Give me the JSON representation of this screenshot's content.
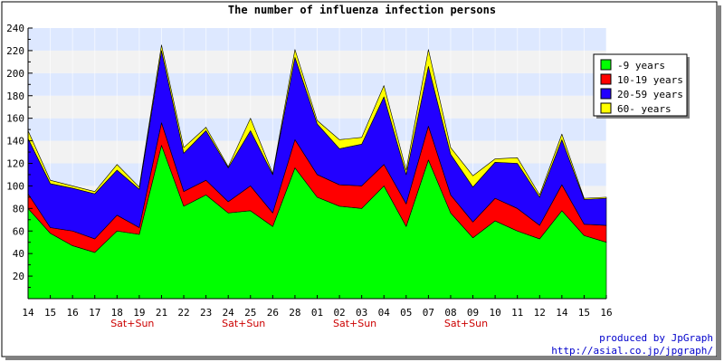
{
  "chart_data": {
    "type": "area",
    "stacked": true,
    "title": "The number of influenza infection persons",
    "categories": [
      "14",
      "15",
      "16",
      "17",
      "18",
      "19",
      "21",
      "22",
      "23",
      "24",
      "25",
      "26",
      "28",
      "01",
      "02",
      "03",
      "04",
      "05",
      "07",
      "08",
      "09",
      "10",
      "11",
      "12",
      "14",
      "15",
      "16"
    ],
    "x_sublabels": [
      {
        "index": 4,
        "text": "Sat+Sun"
      },
      {
        "index": 9,
        "text": "Sat+Sun"
      },
      {
        "index": 14,
        "text": "Sat+Sun"
      },
      {
        "index": 19,
        "text": "Sat+Sun"
      }
    ],
    "ylim": [
      0,
      240
    ],
    "yticks": [
      20,
      40,
      60,
      80,
      100,
      120,
      140,
      160,
      180,
      200,
      220,
      240
    ],
    "grid": true,
    "legend_position": "top-right",
    "series": [
      {
        "name": "-9 years",
        "color": "#00ff00",
        "values": [
          80,
          58,
          47,
          41,
          60,
          57,
          136,
          82,
          92,
          76,
          78,
          64,
          116,
          90,
          82,
          80,
          100,
          64,
          123,
          76,
          54,
          69,
          60,
          53,
          78,
          56,
          50
        ]
      },
      {
        "name": "10-19 years",
        "color": "#ff0000",
        "values": [
          13,
          5,
          13,
          12,
          14,
          6,
          20,
          13,
          13,
          10,
          22,
          12,
          25,
          20,
          19,
          20,
          19,
          20,
          30,
          16,
          14,
          20,
          20,
          12,
          23,
          10,
          15
        ]
      },
      {
        "name": "20-59 years",
        "color": "#2200ff",
        "values": [
          49,
          39,
          38,
          40,
          40,
          34,
          64,
          34,
          44,
          30,
          49,
          34,
          73,
          45,
          32,
          37,
          60,
          26,
          53,
          36,
          31,
          32,
          40,
          25,
          40,
          22,
          24
        ]
      },
      {
        "name": "60- years",
        "color": "#ffff00",
        "values": [
          7,
          3,
          2,
          2,
          5,
          2,
          5,
          5,
          3,
          1,
          11,
          1,
          7,
          3,
          8,
          6,
          10,
          4,
          15,
          6,
          10,
          3,
          5,
          2,
          5,
          1,
          1
        ]
      }
    ],
    "band_colors": [
      "#dde8ff",
      "#f2f2f2"
    ]
  },
  "credit": {
    "line1": "produced by JpGraph",
    "line2": "http://asial.co.jp/jpgraph/"
  }
}
